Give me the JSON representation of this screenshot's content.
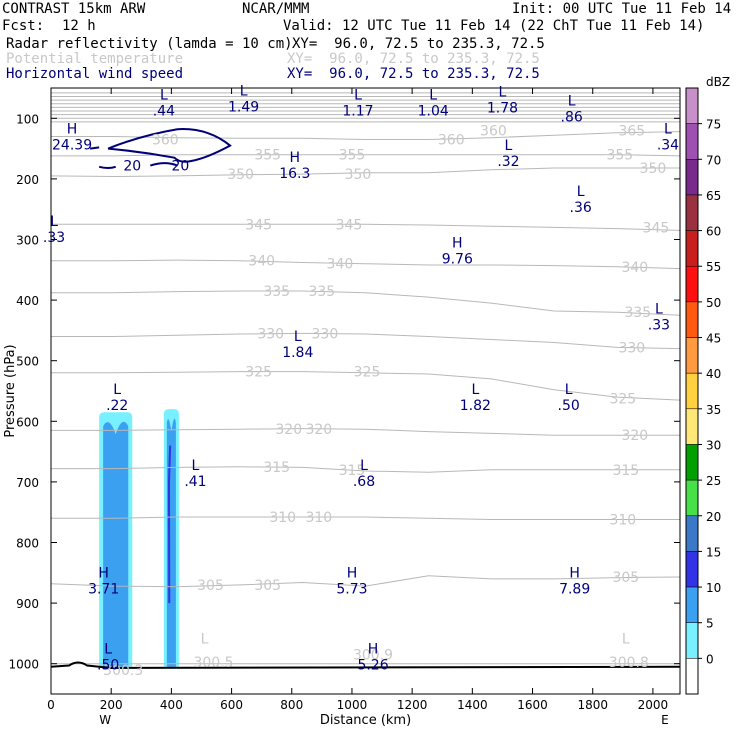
{
  "header": {
    "model": "CONTRAST 15km ARW",
    "center": "NCAR/MMM",
    "init": "Init: 00 UTC Tue 11 Feb 14",
    "fcst_label": "Fcst:",
    "fcst_value": "12 h",
    "valid": "Valid: 12 UTC Tue 11 Feb 14 (22 ChT Tue 11 Feb 14)",
    "fields": [
      {
        "name": "Radar reflectivity (lamda = 10 cm)",
        "xy": "XY=  96.0, 72.5 to 235.3, 72.5",
        "color": "#000000"
      },
      {
        "name": "Potential temperature",
        "xy": "XY=  96.0, 72.5 to 235.3, 72.5",
        "color": "#c8c8c8"
      },
      {
        "name": "Horizontal wind speed",
        "xy": "XY=  96.0, 72.5 to 235.3, 72.5",
        "color": "#00007a"
      }
    ]
  },
  "chart_data": {
    "type": "cross-section",
    "xlabel": "Distance (km)",
    "ylabel": "Pressure (hPa)",
    "xlim": [
      0,
      2090
    ],
    "ylim": [
      1050,
      50
    ],
    "x_ticks": [
      0,
      200,
      400,
      600,
      800,
      1000,
      1200,
      1400,
      1600,
      1800,
      2000
    ],
    "y_ticks": [
      100,
      200,
      300,
      400,
      500,
      600,
      700,
      800,
      900,
      1000
    ],
    "x_end_labels": {
      "left": "W",
      "right": "E"
    },
    "colorbar": {
      "unit": "dBZ",
      "levels": [
        75,
        70,
        65,
        60,
        55,
        50,
        45,
        40,
        35,
        30,
        25,
        20,
        15,
        10,
        5,
        0
      ],
      "colors": [
        "#c890c8",
        "#a050b0",
        "#7a2a8a",
        "#9a3040",
        "#c81e1e",
        "#ff1010",
        "#ff5a10",
        "#ff9a40",
        "#ffd040",
        "#ffe878",
        "#00a000",
        "#48e048",
        "#3c78c8",
        "#3232e6",
        "#3ca0f0",
        "#78f0ff",
        "#ffffff"
      ]
    },
    "theta_labels": [
      {
        "x": 380,
        "p": 135,
        "v": "360"
      },
      {
        "x": 1330,
        "p": 135,
        "v": "360"
      },
      {
        "x": 1470,
        "p": 120,
        "v": "360"
      },
      {
        "x": 1930,
        "p": 120,
        "v": "365"
      },
      {
        "x": 720,
        "p": 160,
        "v": "355"
      },
      {
        "x": 1000,
        "p": 160,
        "v": "355"
      },
      {
        "x": 1890,
        "p": 160,
        "v": "355"
      },
      {
        "x": 630,
        "p": 192,
        "v": "350"
      },
      {
        "x": 1020,
        "p": 192,
        "v": "350"
      },
      {
        "x": 2000,
        "p": 182,
        "v": "350"
      },
      {
        "x": 690,
        "p": 275,
        "v": "345"
      },
      {
        "x": 990,
        "p": 275,
        "v": "345"
      },
      {
        "x": 2010,
        "p": 280,
        "v": "345"
      },
      {
        "x": 700,
        "p": 335,
        "v": "340"
      },
      {
        "x": 960,
        "p": 340,
        "v": "340"
      },
      {
        "x": 1940,
        "p": 345,
        "v": "340"
      },
      {
        "x": 750,
        "p": 385,
        "v": "335"
      },
      {
        "x": 900,
        "p": 385,
        "v": "335"
      },
      {
        "x": 1950,
        "p": 420,
        "v": "335"
      },
      {
        "x": 730,
        "p": 455,
        "v": "330"
      },
      {
        "x": 910,
        "p": 455,
        "v": "330"
      },
      {
        "x": 1930,
        "p": 478,
        "v": "330"
      },
      {
        "x": 690,
        "p": 518,
        "v": "325"
      },
      {
        "x": 1050,
        "p": 518,
        "v": "325"
      },
      {
        "x": 1900,
        "p": 562,
        "v": "325"
      },
      {
        "x": 790,
        "p": 613,
        "v": "320"
      },
      {
        "x": 890,
        "p": 613,
        "v": "320"
      },
      {
        "x": 1940,
        "p": 623,
        "v": "320"
      },
      {
        "x": 750,
        "p": 675,
        "v": "315"
      },
      {
        "x": 1000,
        "p": 680,
        "v": "315"
      },
      {
        "x": 1910,
        "p": 680,
        "v": "315"
      },
      {
        "x": 770,
        "p": 758,
        "v": "310"
      },
      {
        "x": 890,
        "p": 758,
        "v": "310"
      },
      {
        "x": 1900,
        "p": 762,
        "v": "310"
      },
      {
        "x": 530,
        "p": 870,
        "v": "305"
      },
      {
        "x": 720,
        "p": 870,
        "v": "305"
      },
      {
        "x": 1910,
        "p": 857,
        "v": "305"
      },
      {
        "x": 240,
        "p": 1010,
        "v": "300.3"
      },
      {
        "x": 540,
        "p": 997,
        "v": "300.5"
      },
      {
        "x": 1070,
        "p": 985,
        "v": "300.9"
      },
      {
        "x": 1920,
        "p": 997,
        "v": "300.8"
      }
    ],
    "theta_extrema": [
      {
        "x": 510,
        "p": 980,
        "t": "L"
      },
      {
        "x": 1910,
        "p": 980,
        "t": "L"
      }
    ],
    "wind_extrema": [
      {
        "x": 375,
        "p": 79,
        "t": "L",
        "v": ".44"
      },
      {
        "x": 640,
        "p": 72,
        "t": "L",
        "v": "1.49"
      },
      {
        "x": 1020,
        "p": 79,
        "t": "L",
        "v": "1.17"
      },
      {
        "x": 1270,
        "p": 79,
        "t": "L",
        "v": "1.04"
      },
      {
        "x": 1500,
        "p": 74,
        "t": "L",
        "v": "1.78"
      },
      {
        "x": 1730,
        "p": 89,
        "t": "L",
        "v": ".86"
      },
      {
        "x": 2050,
        "p": 135,
        "t": "L",
        "v": ".34"
      },
      {
        "x": 70,
        "p": 135,
        "t": "H",
        "v": "24.39"
      },
      {
        "x": 810,
        "p": 182,
        "t": "H",
        "v": "16.3"
      },
      {
        "x": 1520,
        "p": 162,
        "t": "L",
        "v": ".32"
      },
      {
        "x": 1760,
        "p": 238,
        "t": "L",
        "v": ".36"
      },
      {
        "x": 10,
        "p": 288,
        "t": "L",
        "v": ".33"
      },
      {
        "x": 1350,
        "p": 323,
        "t": "H",
        "v": "9.76"
      },
      {
        "x": 2020,
        "p": 432,
        "t": "L",
        "v": ".33"
      },
      {
        "x": 820,
        "p": 477,
        "t": "L",
        "v": "1.84"
      },
      {
        "x": 220,
        "p": 565,
        "t": "L",
        "v": ".22"
      },
      {
        "x": 1410,
        "p": 565,
        "t": "L",
        "v": "1.82"
      },
      {
        "x": 1720,
        "p": 565,
        "t": "L",
        "v": ".50"
      },
      {
        "x": 480,
        "p": 690,
        "t": "L",
        "v": ".41"
      },
      {
        "x": 1040,
        "p": 690,
        "t": "L",
        "v": ".68"
      },
      {
        "x": 175,
        "p": 868,
        "t": "H",
        "v": "3.71"
      },
      {
        "x": 1000,
        "p": 868,
        "t": "H",
        "v": "5.73"
      },
      {
        "x": 1740,
        "p": 868,
        "t": "H",
        "v": "7.89"
      },
      {
        "x": 190,
        "p": 993,
        "t": "L",
        "v": ".50"
      },
      {
        "x": 1070,
        "p": 993,
        "t": "H",
        "v": "5.26"
      }
    ],
    "wind_contours": [
      {
        "v": "20",
        "x": 270,
        "p": 178
      },
      {
        "v": "20",
        "x": 430,
        "p": 178
      }
    ],
    "reflectivity_columns": [
      {
        "x0": 160,
        "x1": 270,
        "p_top": 585,
        "p_bottom": 1005,
        "core": "10-15 dBZ"
      },
      {
        "x0": 375,
        "x1": 425,
        "p_top": 580,
        "p_bottom": 1005,
        "core": "10-15 dBZ"
      }
    ]
  }
}
